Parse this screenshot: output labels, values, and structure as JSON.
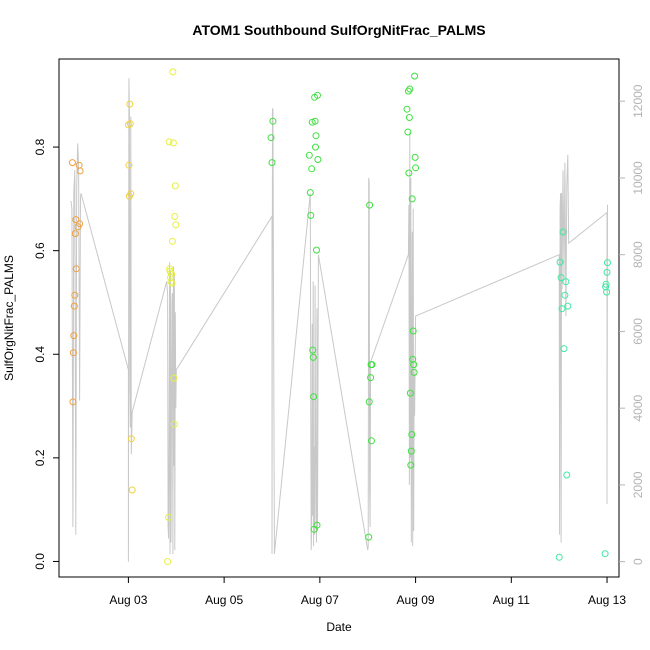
{
  "chart_data": {
    "type": "scatter",
    "title": "ATOM1 Southbound SulfOrgNitFrac_PALMS",
    "xlabel": "Date",
    "ylabel": "SulfOrgNitFrac_PALMS",
    "xlim": [
      1.55,
      13.25
    ],
    "ylim": [
      -0.03,
      0.97
    ],
    "x_tick_values": [
      3,
      5,
      7,
      9,
      11,
      13
    ],
    "x_tick_labels": [
      "Aug 03",
      "Aug 05",
      "Aug 07",
      "Aug 09",
      "Aug 11",
      "Aug 13"
    ],
    "y_ticks": [
      0.0,
      0.2,
      0.4,
      0.6,
      0.8
    ],
    "y_tick_labels": [
      "0.0",
      "0.2",
      "0.4",
      "0.6",
      "0.8"
    ],
    "y2_ticks": [
      0,
      2000,
      4000,
      6000,
      8000,
      10000,
      12000
    ],
    "y2_tick_labels": [
      "0",
      "2000",
      "4000",
      "6000",
      "8000",
      "10000",
      "12000"
    ],
    "y2lim": [
      -400,
      13100
    ],
    "grid": false,
    "point_colors": {
      "orange": "#f0a040",
      "yellow_orange": "#f0d040",
      "yellow": "#e6f040",
      "green": "#40e040",
      "teal": "#40e8a0"
    },
    "line_color": "#c8c8c8",
    "series": [
      {
        "color_key": "orange",
        "x": [
          1.83,
          1.84,
          1.85,
          1.86,
          1.87,
          1.88,
          1.89,
          1.9,
          1.91,
          1.95,
          1.97,
          1.98,
          1.99
        ],
        "y": [
          0.77,
          0.308,
          0.403,
          0.436,
          0.493,
          0.514,
          0.633,
          0.66,
          0.565,
          0.646,
          0.765,
          0.652,
          0.754
        ]
      },
      {
        "color_key": "yellow_orange",
        "x": [
          3.0,
          3.01,
          3.02,
          3.03,
          3.04,
          3.05,
          3.06,
          3.08
        ],
        "y": [
          0.843,
          0.765,
          0.705,
          0.883,
          0.845,
          0.71,
          0.237,
          0.138
        ]
      },
      {
        "color_key": "yellow",
        "x": [
          3.82,
          3.84,
          3.85,
          3.86,
          3.87,
          3.88,
          3.89,
          3.9,
          3.91,
          3.92,
          3.93,
          3.94,
          3.95,
          3.96,
          3.97,
          3.98,
          3.99
        ],
        "y": [
          0.0,
          0.085,
          0.81,
          0.565,
          0.56,
          0.548,
          0.54,
          0.555,
          0.537,
          0.618,
          0.945,
          0.808,
          0.354,
          0.265,
          0.666,
          0.725,
          0.65
        ]
      },
      {
        "color_key": "green",
        "x": [
          5.98,
          6.0,
          6.02,
          6.78,
          6.8,
          6.81,
          6.83,
          6.84,
          6.85,
          6.86,
          6.87,
          6.88,
          6.89,
          6.9,
          6.91,
          6.92,
          6.93,
          6.94,
          6.95,
          6.96
        ],
        "y": [
          0.818,
          0.77,
          0.85,
          0.784,
          0.712,
          0.668,
          0.758,
          0.848,
          0.408,
          0.394,
          0.318,
          0.062,
          0.896,
          0.85,
          0.8,
          0.822,
          0.601,
          0.07,
          0.9,
          0.776
        ]
      },
      {
        "color_key": "green",
        "x": [
          8.02,
          8.03,
          8.04,
          8.06,
          8.07,
          8.08,
          8.09
        ],
        "y": [
          0.047,
          0.308,
          0.688,
          0.355,
          0.38,
          0.233,
          0.38
        ]
      },
      {
        "color_key": "green",
        "x": [
          8.82,
          8.84,
          8.85,
          8.86,
          8.87,
          8.88,
          8.89,
          8.9,
          8.91,
          8.92,
          8.93,
          8.94,
          8.95,
          8.96,
          8.97,
          8.98,
          8.99,
          9.0
        ],
        "y": [
          0.873,
          0.829,
          0.908,
          0.75,
          0.857,
          0.912,
          0.325,
          0.186,
          0.213,
          0.245,
          0.7,
          0.39,
          0.445,
          0.38,
          0.365,
          0.937,
          0.78,
          0.76
        ]
      },
      {
        "color_key": "teal",
        "x": [
          12.0,
          12.02,
          12.04,
          12.06,
          12.08,
          12.1,
          12.12,
          12.14,
          12.16,
          12.18
        ],
        "y": [
          0.008,
          0.578,
          0.548,
          0.488,
          0.636,
          0.411,
          0.514,
          0.54,
          0.167,
          0.493
        ]
      },
      {
        "color_key": "teal",
        "x": [
          12.96,
          12.97,
          12.98,
          12.99,
          13.0,
          13.01
        ],
        "y": [
          0.015,
          0.53,
          0.535,
          0.52,
          0.558,
          0.577
        ]
      }
    ],
    "secondary_line": {
      "axis": "right",
      "x": [
        1.8,
        1.82,
        1.84,
        1.86,
        1.88,
        1.9,
        1.92,
        1.94,
        1.96,
        1.98,
        2.0,
        2.01,
        3.0,
        3.0,
        3.01,
        3.02,
        3.03,
        3.04,
        3.05,
        3.06,
        3.08,
        3.8,
        3.82,
        3.83,
        3.84,
        3.85,
        3.86,
        3.87,
        3.88,
        3.89,
        3.9,
        3.91,
        3.92,
        3.93,
        3.94,
        3.95,
        3.96,
        3.97,
        3.98,
        3.99,
        4.0,
        6.0,
        6.0,
        6.01,
        6.02,
        6.05,
        6.8,
        6.81,
        6.82,
        6.83,
        6.84,
        6.85,
        6.86,
        6.87,
        6.88,
        6.89,
        6.9,
        6.91,
        6.92,
        6.93,
        6.94,
        6.95,
        6.96,
        6.97,
        8.0,
        8.01,
        8.02,
        8.03,
        8.04,
        8.05,
        8.06,
        8.85,
        8.86,
        8.87,
        8.88,
        8.89,
        8.9,
        8.91,
        8.92,
        8.93,
        8.94,
        8.95,
        8.96,
        8.97,
        8.98,
        9.0,
        12.0,
        12.01,
        12.02,
        12.03,
        12.04,
        12.05,
        12.06,
        12.08,
        12.1,
        12.12,
        12.14,
        12.16,
        12.18,
        12.2,
        13.0,
        13.0,
        13.0,
        13.01
      ],
      "y": [
        9400,
        9200,
        900,
        9600,
        10200,
        700,
        9800,
        10900,
        10300,
        4200,
        9500,
        9600,
        5000,
        0,
        12600,
        11800,
        4500,
        3500,
        11600,
        2800,
        3900,
        7300,
        7000,
        900,
        600,
        3200,
        7800,
        200,
        7600,
        500,
        3700,
        6800,
        7000,
        200,
        7700,
        2500,
        7500,
        300,
        6500,
        4000,
        5000,
        9000,
        200,
        11800,
        11800,
        200,
        9600,
        3500,
        300,
        1000,
        6200,
        1200,
        7300,
        400,
        3000,
        700,
        7200,
        3900,
        1300,
        500,
        6600,
        800,
        3800,
        8000,
        300,
        400,
        10000,
        9900,
        2000,
        900,
        5200,
        8000,
        9300,
        2000,
        11200,
        2700,
        10000,
        500,
        4500,
        8600,
        400,
        9200,
        800,
        4900,
        3800,
        6400,
        8000,
        700,
        9200,
        9600,
        500,
        9600,
        7100,
        10200,
        7400,
        10400,
        6400,
        9800,
        10600,
        8300,
        9100,
        1500,
        2000,
        9300
      ]
    }
  }
}
